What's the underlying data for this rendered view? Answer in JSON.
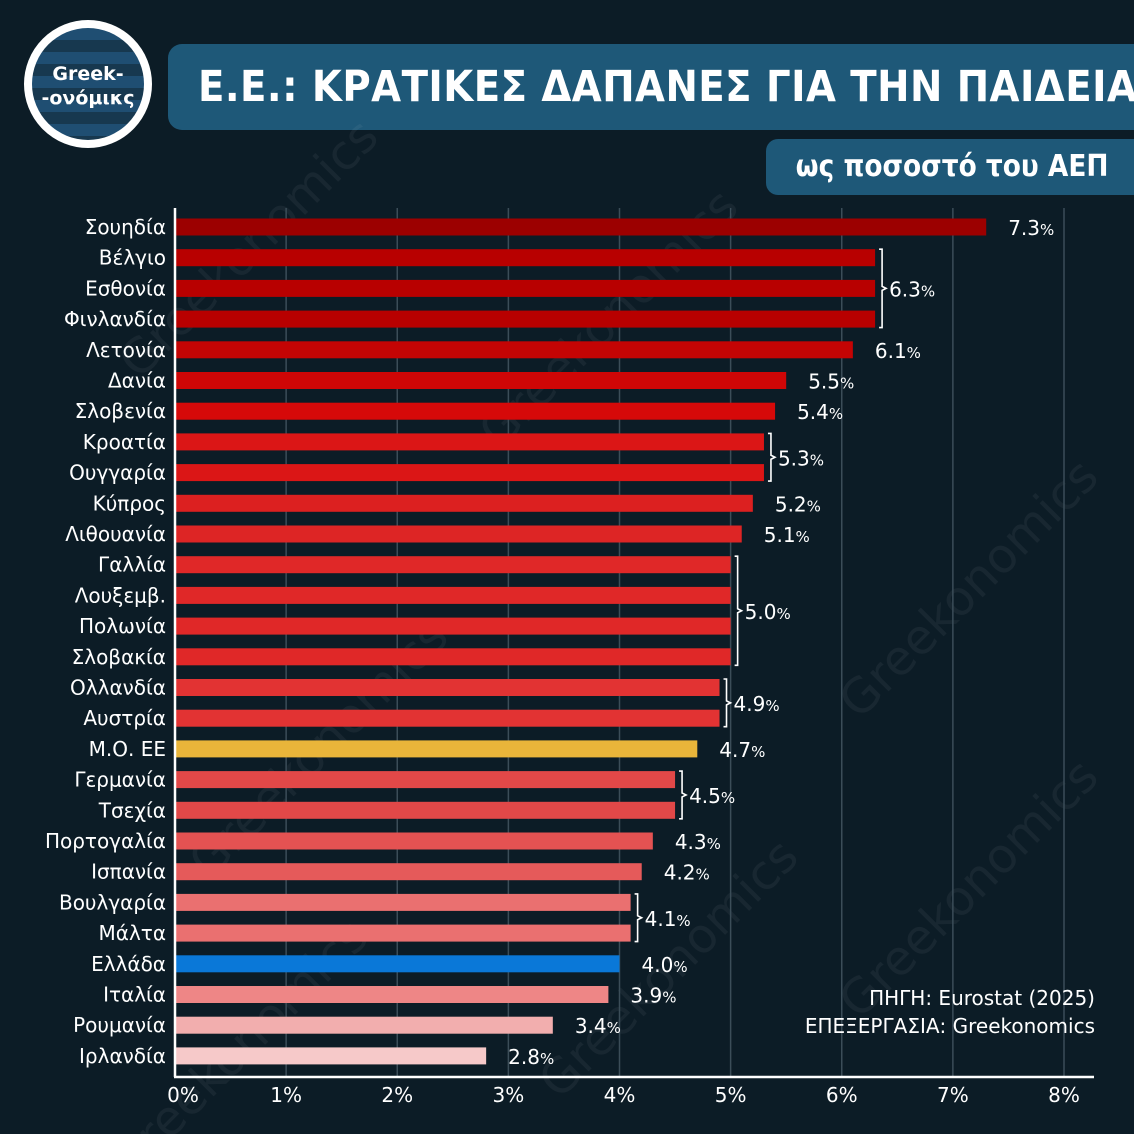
{
  "logo": {
    "line1": "Greek-",
    "line2": "-ονόμικς"
  },
  "header": {
    "title": "Ε.Ε.: ΚΡΑΤΙΚΕΣ ΔΑΠΑΝΕΣ ΓΙΑ ΤΗΝ ΠΑΙΔΕΙΑ",
    "subtitle": "ως ποσοστό του ΑΕΠ"
  },
  "source": {
    "line1": "ΠΗΓΗ: Eurostat (2025)",
    "line2": "ΕΠΕΞΕΡΓΑΣΙΑ: Greekonomics"
  },
  "watermark": "Greekonomics",
  "chart_data": {
    "type": "bar",
    "orientation": "horizontal",
    "categories": [
      "Σουηδία",
      "Βέλγιο",
      "Εσθονία",
      "Φινλανδία",
      "Λετονία",
      "Δανία",
      "Σλοβενία",
      "Κροατία",
      "Ουγγαρία",
      "Κύπρος",
      "Λιθουανία",
      "Γαλλία",
      "Λουξεμβ.",
      "Πολωνία",
      "Σλοβακία",
      "Ολλανδία",
      "Αυστρία",
      "Μ.Ο. ΕΕ",
      "Γερμανία",
      "Τσεχία",
      "Πορτογαλία",
      "Ισπανία",
      "Βουλγαρία",
      "Μάλτα",
      "Ελλάδα",
      "Ιταλία",
      "Ρουμανία",
      "Ιρλανδία"
    ],
    "values": [
      7.3,
      6.3,
      6.3,
      6.3,
      6.1,
      5.5,
      5.4,
      5.3,
      5.3,
      5.2,
      5.1,
      5.0,
      5.0,
      5.0,
      5.0,
      4.9,
      4.9,
      4.7,
      4.5,
      4.5,
      4.3,
      4.2,
      4.1,
      4.1,
      4.0,
      3.9,
      3.4,
      2.8
    ],
    "colors": [
      "#9c0000",
      "#b80000",
      "#b80000",
      "#b80000",
      "#c40404",
      "#cf0606",
      "#d60909",
      "#db1616",
      "#db1616",
      "#dc2020",
      "#dd2525",
      "#e02828",
      "#e02828",
      "#e02828",
      "#e02828",
      "#e23333",
      "#e23333",
      "#e9b53a",
      "#e24848",
      "#e24848",
      "#e45252",
      "#e55a5a",
      "#ea7070",
      "#ea7070",
      "#0a78d8",
      "#ee8686",
      "#f2aeae",
      "#f6c9c9"
    ],
    "labels": [
      {
        "text": "7.3",
        "from": 0,
        "to": 0
      },
      {
        "text": "6.3",
        "from": 1,
        "to": 3
      },
      {
        "text": "6.1",
        "from": 4,
        "to": 4
      },
      {
        "text": "5.5",
        "from": 5,
        "to": 5
      },
      {
        "text": "5.4",
        "from": 6,
        "to": 6
      },
      {
        "text": "5.3",
        "from": 7,
        "to": 8
      },
      {
        "text": "5.2",
        "from": 9,
        "to": 9
      },
      {
        "text": "5.1",
        "from": 10,
        "to": 10
      },
      {
        "text": "5.0",
        "from": 11,
        "to": 14
      },
      {
        "text": "4.9",
        "from": 15,
        "to": 16
      },
      {
        "text": "4.7",
        "from": 17,
        "to": 17
      },
      {
        "text": "4.5",
        "from": 18,
        "to": 19
      },
      {
        "text": "4.3",
        "from": 20,
        "to": 20
      },
      {
        "text": "4.2",
        "from": 21,
        "to": 21
      },
      {
        "text": "4.1",
        "from": 22,
        "to": 23
      },
      {
        "text": "4.0",
        "from": 24,
        "to": 24
      },
      {
        "text": "3.9",
        "from": 25,
        "to": 25
      },
      {
        "text": "3.4",
        "from": 26,
        "to": 26
      },
      {
        "text": "2.8",
        "from": 27,
        "to": 27
      }
    ],
    "label_suffix": "%",
    "x_ticks": [
      "0%",
      "1%",
      "2%",
      "3%",
      "4%",
      "5%",
      "6%",
      "7%",
      "8%"
    ],
    "xlim": [
      0,
      8
    ],
    "grid": true
  }
}
